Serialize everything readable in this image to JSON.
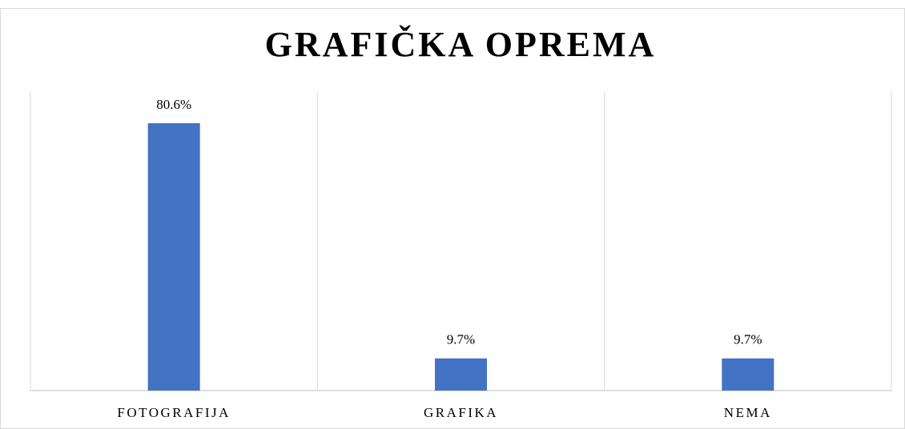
{
  "chart_data": {
    "type": "bar",
    "title": "GRAFIČKA OPREMA",
    "categories": [
      "FOTOGRAFIJA",
      "GRAFIKA",
      "NEMA"
    ],
    "values": [
      80.6,
      9.7,
      9.7
    ],
    "value_labels": [
      "80.6%",
      "9.7%",
      "9.7%"
    ],
    "color": "#4472c4",
    "ylim": [
      0,
      90
    ]
  }
}
